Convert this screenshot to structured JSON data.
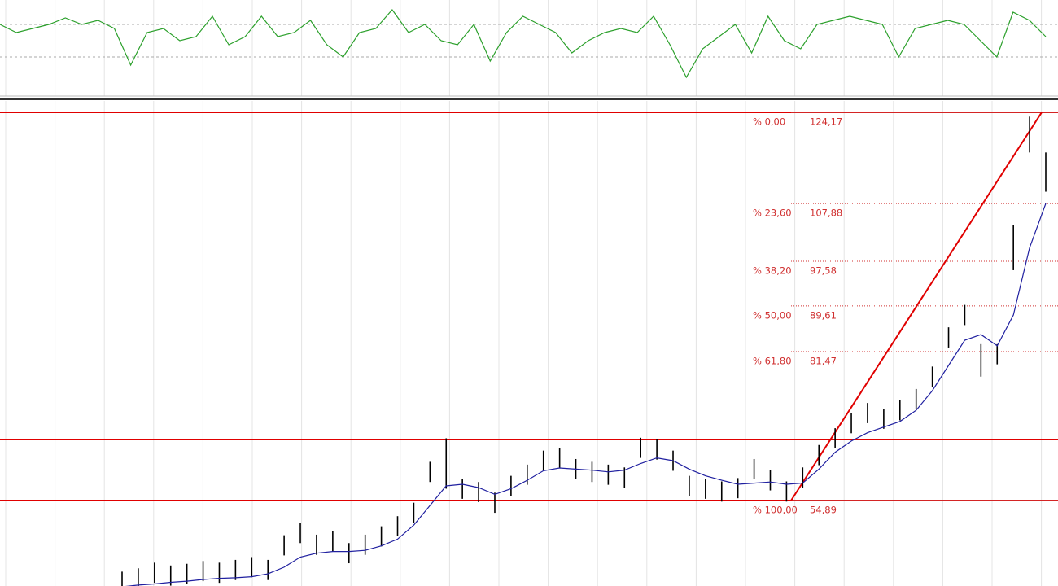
{
  "chart_data": [
    {
      "type": "line",
      "series": [
        {
          "color": "#2ca02c",
          "values": [
            70,
            60,
            65,
            70,
            78,
            70,
            75,
            65,
            20,
            60,
            65,
            50,
            55,
            80,
            45,
            55,
            80,
            55,
            60,
            75,
            45,
            30,
            60,
            65,
            88,
            60,
            70,
            50,
            45,
            70,
            25,
            60,
            80,
            70,
            60,
            35,
            50,
            60,
            65,
            60,
            80,
            45,
            5,
            40,
            55,
            70,
            35,
            80,
            50,
            40,
            70,
            75,
            80,
            75,
            70,
            30,
            65,
            70,
            75,
            70,
            50,
            30,
            85,
            75,
            55
          ]
        }
      ],
      "ylim": [
        0,
        100
      ],
      "yticks": [
        30,
        70
      ],
      "grid": true
    },
    {
      "type": "ohlc",
      "high": [
        42.2,
        42.8,
        43.8,
        43.3,
        43.6,
        44.1,
        43.8,
        44.3,
        44.8,
        44.3,
        48.7,
        50.9,
        48.8,
        49.4,
        47.3,
        48.8,
        50.3,
        52.1,
        54.5,
        61.8,
        66.0,
        58.8,
        58.2,
        56.3,
        59.3,
        61.3,
        63.8,
        64.3,
        62.3,
        61.8,
        61.3,
        60.8,
        66.1,
        65.8,
        63.8,
        59.3,
        58.8,
        58.3,
        58.9,
        62.3,
        60.3,
        58.3,
        60.8,
        64.8,
        67.8,
        70.5,
        72.3,
        71.3,
        72.8,
        74.8,
        78.8,
        85.8,
        89.8,
        82.8,
        82.8,
        104.0,
        123.4,
        117.0
      ],
      "low": [
        38.6,
        39.2,
        40.2,
        39.7,
        40.0,
        40.5,
        40.2,
        40.7,
        41.2,
        40.7,
        45.1,
        47.3,
        45.2,
        45.8,
        43.7,
        45.2,
        46.7,
        48.5,
        50.9,
        58.2,
        57.0,
        55.2,
        54.6,
        52.7,
        55.7,
        57.7,
        60.2,
        60.7,
        58.7,
        58.2,
        57.7,
        57.2,
        62.5,
        62.2,
        60.2,
        55.7,
        55.2,
        54.7,
        55.3,
        58.7,
        56.7,
        54.7,
        57.2,
        61.2,
        64.2,
        66.9,
        68.7,
        67.7,
        69.2,
        71.2,
        75.2,
        82.2,
        86.2,
        77.0,
        79.2,
        96.0,
        117.0,
        110.0
      ],
      "ma": {
        "color": "#2020a0",
        "values": [
          39.5,
          39.8,
          40,
          40.3,
          40.5,
          40.8,
          41,
          41.1,
          41.3,
          41.8,
          43,
          44.8,
          45.5,
          45.8,
          45.8,
          46,
          46.8,
          48,
          50.5,
          54,
          57.5,
          57.8,
          57.2,
          56,
          57,
          58.5,
          60.2,
          60.7,
          60.5,
          60.3,
          60,
          60.3,
          61.5,
          62.5,
          62,
          60.5,
          59.3,
          58.5,
          57.8,
          58,
          58.2,
          57.8,
          58,
          60.5,
          63.5,
          65.5,
          67,
          68,
          69,
          71,
          74.5,
          79,
          83.5,
          84.5,
          82.5,
          88,
          100,
          107.9
        ]
      },
      "color": "#000000",
      "ylim": [
        39.64,
        126.49
      ],
      "hlines": [
        124.17,
        65.78,
        54.89
      ],
      "hline_color": "#e00000",
      "fib_levels": [
        {
          "percent": 0,
          "percent_label": "% 0,00",
          "value": 124.17,
          "value_label": "124,17"
        },
        {
          "percent": 23.6,
          "percent_label": "% 23,60",
          "value": 107.88,
          "value_label": "107,88"
        },
        {
          "percent": 38.2,
          "percent_label": "% 38,20",
          "value": 97.58,
          "value_label": "97,58"
        },
        {
          "percent": 50,
          "percent_label": "% 50,00",
          "value": 89.61,
          "value_label": "89,61"
        },
        {
          "percent": 61.8,
          "percent_label": "% 61,80",
          "value": 81.47,
          "value_label": "81,47"
        },
        {
          "percent": 100,
          "percent_label": "% 100,00",
          "value": 54.89,
          "value_label": "54,89"
        }
      ],
      "fib_color": "#d03030"
    }
  ]
}
